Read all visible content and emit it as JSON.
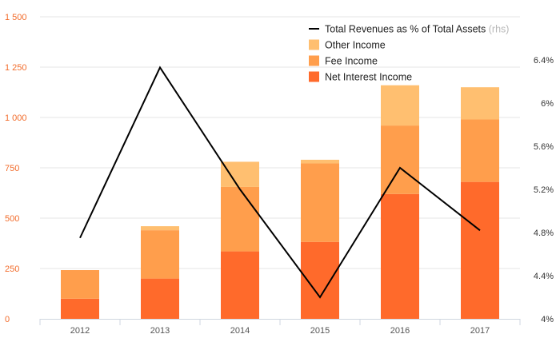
{
  "chart_data": {
    "type": "bar",
    "stacked": true,
    "categories": [
      "2012",
      "2013",
      "2014",
      "2015",
      "2016",
      "2017"
    ],
    "series": [
      {
        "name": "Net Interest Income",
        "values": [
          100,
          200,
          335,
          382,
          620,
          680
        ],
        "color": "#ff6a2b"
      },
      {
        "name": "Fee Income",
        "values": [
          142,
          240,
          320,
          390,
          340,
          310
        ],
        "color": "#ff9e4c"
      },
      {
        "name": "Other Income",
        "values": [
          0,
          20,
          125,
          18,
          200,
          160
        ],
        "color": "#ffbf70"
      }
    ],
    "line": {
      "name": "Total Revenues as % of Total Assets",
      "name_note": "(rhs)",
      "values": [
        4.75,
        6.33,
        5.2,
        4.2,
        5.4,
        4.82
      ],
      "color": "#000000",
      "axis": "right"
    },
    "yaxis_left": {
      "min": 0,
      "max": 1500,
      "ticks": [
        0,
        250,
        500,
        750,
        1000,
        1250,
        1500
      ],
      "tick_labels": [
        "0",
        "250",
        "500",
        "750",
        "1 000",
        "1 250",
        "1 500"
      ],
      "color": "#f26b2a"
    },
    "yaxis_right": {
      "min": 4.0,
      "max": 6.8,
      "ticks": [
        4.0,
        4.4,
        4.8,
        5.2,
        5.6,
        6.0,
        6.4
      ],
      "tick_labels": [
        "4%",
        "4.4%",
        "4.8%",
        "5.2%",
        "5.6%",
        "6%",
        "6.4%"
      ]
    },
    "legend": {
      "placement": "top-right",
      "items": [
        {
          "label": "Total Revenues as % of Total Assets",
          "note": "(rhs)",
          "kind": "line",
          "color": "#000000"
        },
        {
          "label": "Other Income",
          "kind": "box",
          "color": "#ffbf70"
        },
        {
          "label": "Fee Income",
          "kind": "box",
          "color": "#ff9e4c"
        },
        {
          "label": "Net Interest Income",
          "kind": "box",
          "color": "#ff6a2b"
        }
      ]
    },
    "grid": true,
    "title": "",
    "xlabel": "",
    "ylabel": ""
  }
}
